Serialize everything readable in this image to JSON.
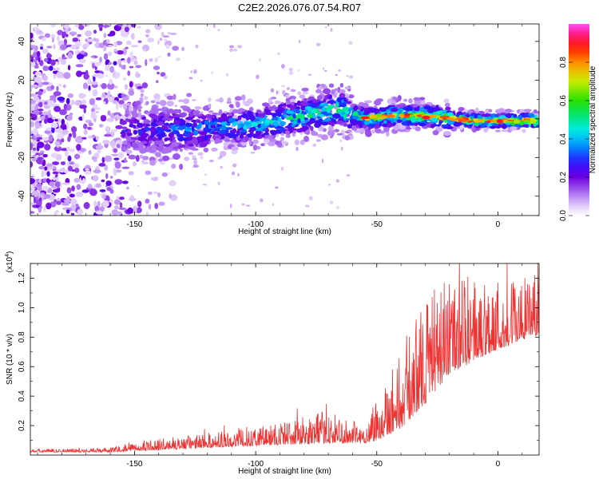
{
  "title": "C2E2.2026.076.07.54.R07",
  "chart_data": [
    {
      "type": "heatmap",
      "xlabel": "Height of straight line (km)",
      "ylabel": "Frequency (Hz)",
      "xlim": [
        -193,
        17
      ],
      "ylim": [
        -50,
        49
      ],
      "xticks": [
        -150,
        -100,
        -50,
        0
      ],
      "yticks": [
        -40,
        -20,
        0,
        20,
        40
      ],
      "colorbar": {
        "label": "Normalized spectral amplitude",
        "range": [
          0,
          1
        ],
        "ticks": [
          "0.0",
          "0.2",
          "0.4",
          "0.6",
          "0.8"
        ]
      },
      "ridge": [
        {
          "x": -155,
          "y": -6
        },
        {
          "x": -140,
          "y": -6
        },
        {
          "x": -125,
          "y": -5
        },
        {
          "x": -110,
          "y": -4
        },
        {
          "x": -95,
          "y": -2
        },
        {
          "x": -80,
          "y": 2
        },
        {
          "x": -65,
          "y": 5
        },
        {
          "x": -55,
          "y": 0
        },
        {
          "x": -40,
          "y": 2
        },
        {
          "x": -25,
          "y": 1
        },
        {
          "x": -10,
          "y": -1
        },
        {
          "x": 0,
          "y": -1
        },
        {
          "x": 15,
          "y": -1
        }
      ]
    },
    {
      "type": "line",
      "xlabel": "Height of straight line (km)",
      "ylabel": "SNR (10 * v/v)",
      "multiplier": "(x10",
      "multiplier_exp": "4",
      "multiplier_close": ")",
      "xlim": [
        -193,
        17
      ],
      "ylim": [
        0,
        1.3
      ],
      "xticks": [
        -150,
        -100,
        -50,
        0
      ],
      "yticks": [
        0.2,
        0.4,
        0.6,
        0.8,
        1.0,
        1.2
      ],
      "ytick_labels": [
        "0.2",
        "0.4",
        "0.6",
        "0.8",
        "1.0",
        "1.2"
      ],
      "series": [
        {
          "color": "#ee3333",
          "envelope": [
            {
              "x": -193,
              "base": 0.02,
              "spread": 0.02
            },
            {
              "x": -160,
              "base": 0.02,
              "spread": 0.03
            },
            {
              "x": -145,
              "base": 0.03,
              "spread": 0.07
            },
            {
              "x": -120,
              "base": 0.05,
              "spread": 0.1
            },
            {
              "x": -90,
              "base": 0.07,
              "spread": 0.16
            },
            {
              "x": -70,
              "base": 0.08,
              "spread": 0.22
            },
            {
              "x": -55,
              "base": 0.08,
              "spread": 0.12
            },
            {
              "x": -50,
              "base": 0.1,
              "spread": 0.35
            },
            {
              "x": -40,
              "base": 0.18,
              "spread": 0.55
            },
            {
              "x": -30,
              "base": 0.35,
              "spread": 0.75
            },
            {
              "x": -20,
              "base": 0.55,
              "spread": 0.65
            },
            {
              "x": -5,
              "base": 0.68,
              "spread": 0.55
            },
            {
              "x": 10,
              "base": 0.78,
              "spread": 0.45
            },
            {
              "x": 17,
              "base": 0.82,
              "spread": 0.4
            }
          ]
        }
      ]
    }
  ]
}
